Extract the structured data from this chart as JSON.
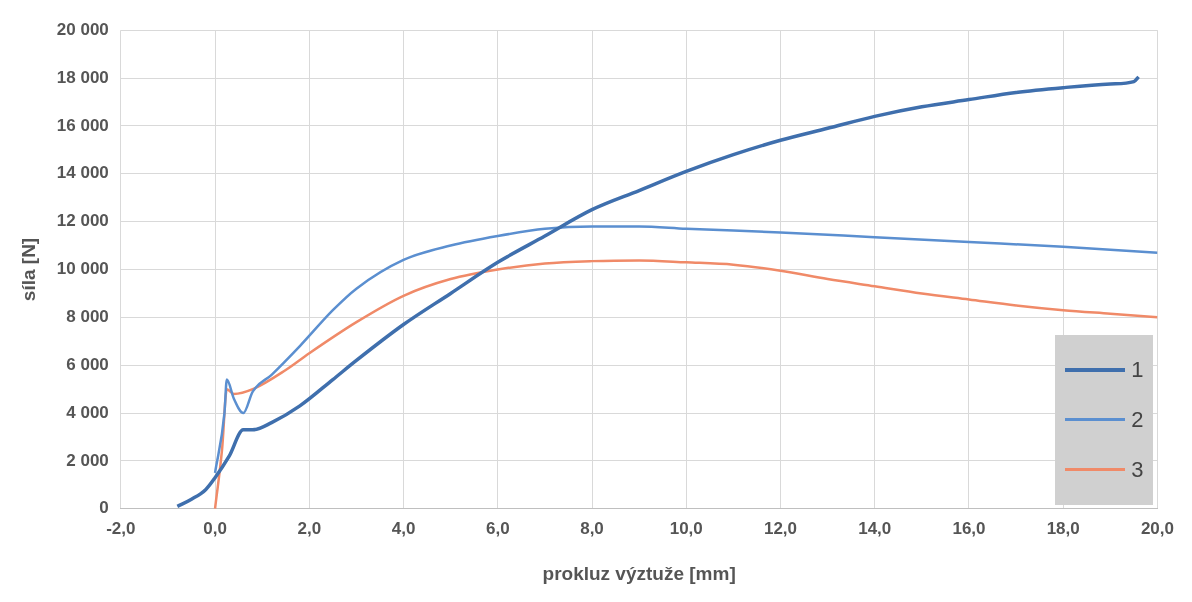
{
  "chart_data": {
    "type": "line",
    "xlabel": "prokluz výztuže [mm]",
    "ylabel": "síla [N]",
    "xlim": [
      -2,
      20
    ],
    "ylim": [
      0,
      20000
    ],
    "xticks": [
      {
        "value": -2,
        "label": "-2,0"
      },
      {
        "value": 0,
        "label": "0,0"
      },
      {
        "value": 2,
        "label": "2,0"
      },
      {
        "value": 4,
        "label": "4,0"
      },
      {
        "value": 6,
        "label": "6,0"
      },
      {
        "value": 8,
        "label": "8,0"
      },
      {
        "value": 10,
        "label": "10,0"
      },
      {
        "value": 12,
        "label": "12,0"
      },
      {
        "value": 14,
        "label": "14,0"
      },
      {
        "value": 16,
        "label": "16,0"
      },
      {
        "value": 18,
        "label": "18,0"
      },
      {
        "value": 20,
        "label": "20,0"
      }
    ],
    "yticks": [
      0,
      {
        "value": 2000,
        "label": "2 000"
      },
      {
        "value": 4000,
        "label": "4 000"
      },
      {
        "value": 6000,
        "label": "6 000"
      },
      {
        "value": 8000,
        "label": "8 000"
      },
      {
        "value": 10000,
        "label": "10 000"
      },
      {
        "value": 12000,
        "label": "12 000"
      },
      {
        "value": 14000,
        "label": "14 000"
      },
      {
        "value": 16000,
        "label": "16 000"
      },
      {
        "value": 18000,
        "label": "18 000"
      },
      {
        "value": 20000,
        "label": "20 000"
      }
    ],
    "grid": true,
    "legend": "bottom right",
    "marker": "none",
    "line_style": "solid",
    "series": [
      {
        "name": "1",
        "color": "#3f6fad",
        "x": [
          -0.8,
          -0.5,
          -0.2,
          0.0,
          0.3,
          0.6,
          0.8,
          1.2,
          1.8,
          2.5,
          3.0,
          4.0,
          5.0,
          6.0,
          7.0,
          8.0,
          9.0,
          10,
          11,
          12,
          13,
          14,
          15,
          16,
          17,
          18,
          19,
          19.5,
          19.6
        ],
        "values": [
          100,
          400,
          800,
          1300,
          2200,
          3300,
          3300,
          3600,
          4300,
          5400,
          6200,
          7700,
          9000,
          10300,
          11400,
          12500,
          13300,
          14100,
          14800,
          15400,
          15900,
          16400,
          16800,
          17100,
          17400,
          17600,
          17750,
          17850,
          18050
        ]
      },
      {
        "name": "2",
        "color": "#5b8fd0",
        "x": [
          0.0,
          0.2,
          0.25,
          0.4,
          0.6,
          0.8,
          1.2,
          1.8,
          2.5,
          3.0,
          4.0,
          5.0,
          6.0,
          7.0,
          8.0,
          9.0,
          10,
          12,
          14,
          16,
          18,
          20
        ],
        "values": [
          1500,
          4000,
          5400,
          4600,
          4000,
          4900,
          5600,
          6800,
          8300,
          9200,
          10400,
          11000,
          11400,
          11700,
          11800,
          11800,
          11700,
          11550,
          11350,
          11150,
          10950,
          10700
        ]
      },
      {
        "name": "3",
        "color": "#f08a68",
        "x": [
          0.0,
          0.15,
          0.25,
          0.4,
          0.8,
          1.5,
          2.0,
          3.0,
          4.0,
          5.0,
          6.0,
          7.0,
          8.0,
          9.0,
          10,
          11,
          12,
          13,
          14,
          15,
          16,
          17,
          18,
          19,
          20
        ],
        "values": [
          0,
          2500,
          5000,
          4800,
          5000,
          5800,
          6500,
          7800,
          8900,
          9600,
          10000,
          10250,
          10350,
          10380,
          10300,
          10200,
          9950,
          9600,
          9300,
          9000,
          8750,
          8500,
          8300,
          8150,
          8000
        ]
      }
    ]
  }
}
